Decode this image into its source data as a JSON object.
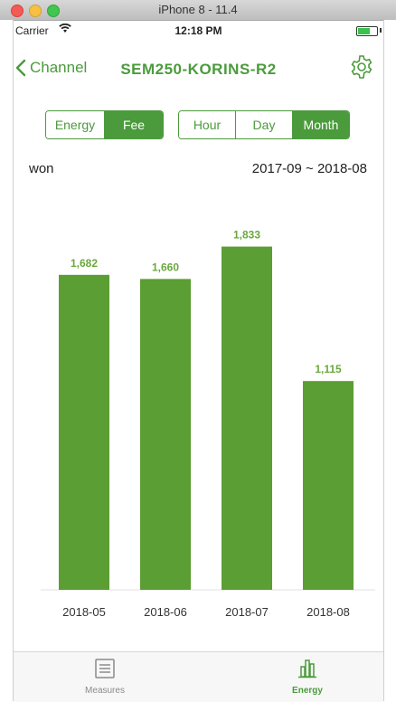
{
  "window": {
    "title": "iPhone 8 - 11.4"
  },
  "status_bar": {
    "carrier": "Carrier",
    "time": "12:18 PM"
  },
  "nav": {
    "back_label": "Channel",
    "title": "SEM250-KORINS-R2"
  },
  "segments": {
    "metric": [
      {
        "label": "Energy",
        "active": false
      },
      {
        "label": "Fee",
        "active": true
      }
    ],
    "period": [
      {
        "label": "Hour",
        "active": false
      },
      {
        "label": "Day",
        "active": false
      },
      {
        "label": "Month",
        "active": true
      }
    ]
  },
  "unit_label": "won",
  "date_range": "2017-09 ~ 2018-08",
  "chart_data": {
    "type": "bar",
    "categories": [
      "2018-05",
      "2018-06",
      "2018-07",
      "2018-08"
    ],
    "values": [
      1682,
      1660,
      1833,
      1115
    ],
    "value_labels": [
      "1,682",
      "1,660",
      "1,833",
      "1,115"
    ],
    "ylim": [
      0,
      2000
    ],
    "grid": false,
    "bar_color": "#5b9e33",
    "label_color": "#6aa83e"
  },
  "tabbar": {
    "items": [
      {
        "label": "Measures",
        "icon": "list-icon",
        "active": false
      },
      {
        "label": "Energy",
        "icon": "bar-chart-icon",
        "active": true
      }
    ]
  },
  "colors": {
    "accent": "#4b9b3c"
  }
}
